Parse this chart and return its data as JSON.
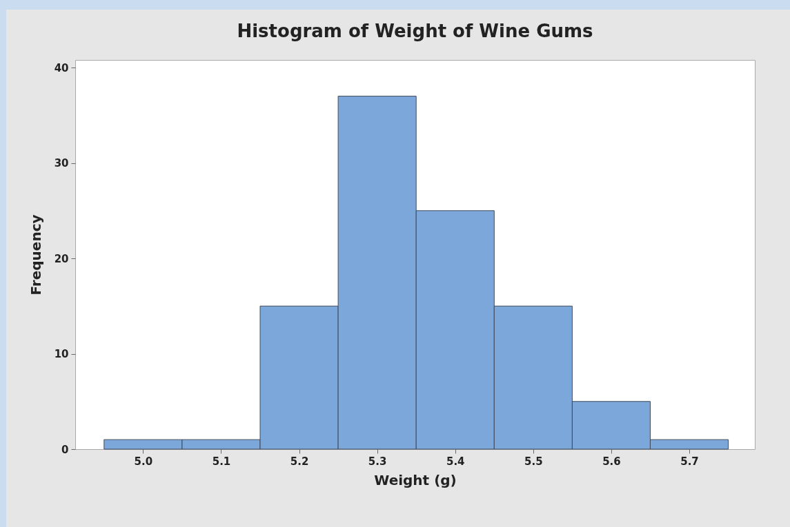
{
  "chart_data": {
    "type": "histogram",
    "title": "Histogram of Weight of Wine Gums",
    "xlabel": "Weight (g)",
    "ylabel": "Frequency",
    "bins": [
      4.95,
      5.05,
      5.15,
      5.25,
      5.35,
      5.45,
      5.55,
      5.65,
      5.75
    ],
    "values": [
      1,
      1,
      15,
      37,
      25,
      15,
      5,
      1
    ],
    "color": "#7ba7da",
    "xlim": [
      4.913,
      5.784
    ],
    "ylim": [
      0,
      40.8
    ],
    "xticks": [
      {
        "value": 5,
        "label": "5.0"
      },
      {
        "value": 5.1,
        "label": "5.1"
      },
      {
        "value": 5.2,
        "label": "5.2"
      },
      {
        "value": 5.3,
        "label": "5.3"
      },
      {
        "value": 5.4,
        "label": "5.4"
      },
      {
        "value": 5.5,
        "label": "5.5"
      },
      {
        "value": 5.6,
        "label": "5.6"
      },
      {
        "value": 5.7,
        "label": "5.7"
      }
    ],
    "yticks": [
      0,
      10,
      20,
      30,
      40
    ],
    "grid": false
  }
}
